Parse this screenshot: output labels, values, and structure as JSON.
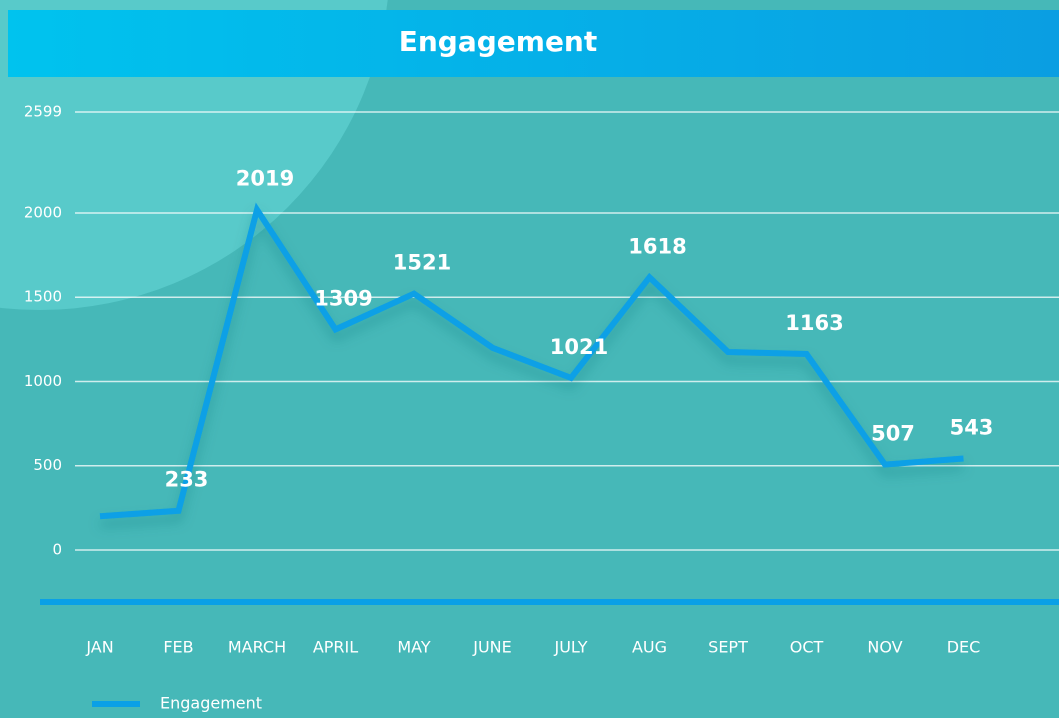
{
  "chart_data": {
    "type": "line",
    "title": "Engagement",
    "categories": [
      "JAN",
      "FEB",
      "MARCH",
      "APRIL",
      "MAY",
      "JUNE",
      "JULY",
      "AUG",
      "SEPT",
      "OCT",
      "NOV",
      "DEC"
    ],
    "series": [
      {
        "name": "Engagement",
        "color": "#0aa0e6",
        "values": [
          200,
          233,
          2019,
          1309,
          1521,
          1200,
          1021,
          1618,
          1175,
          1163,
          507,
          543
        ],
        "value_labels": [
          null,
          "233",
          "2019",
          "1309",
          "1521",
          null,
          "1021",
          "1618",
          null,
          "1163",
          "507",
          "543"
        ]
      }
    ],
    "ylim": [
      0,
      2599
    ],
    "yticks": [
      0,
      500,
      1000,
      1500,
      2000,
      2599
    ],
    "grid": true
  }
}
